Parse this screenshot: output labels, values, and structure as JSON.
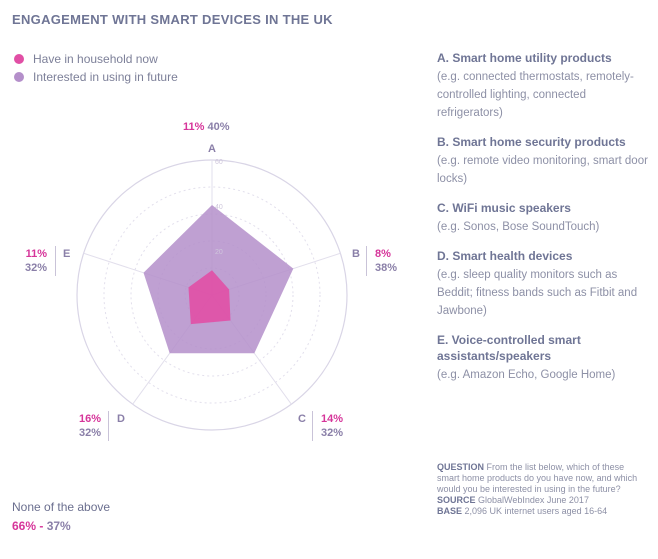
{
  "title": "ENGAGEMENT WITH SMART DEVICES IN THE UK",
  "legend": [
    {
      "label": "Have in household now",
      "color": "#e14fa5"
    },
    {
      "label": "Interested in using in future",
      "color": "#b48fca"
    }
  ],
  "chart_data": {
    "type": "radar",
    "axes": [
      "A",
      "B",
      "C",
      "D",
      "E"
    ],
    "rmax": 60,
    "ticks": [
      "60",
      "40",
      "20"
    ],
    "series": [
      {
        "name": "Have in household now",
        "values": [
          11,
          8,
          14,
          16,
          11
        ],
        "color": "#e14fa5"
      },
      {
        "name": "Interested in using in future",
        "values": [
          40,
          38,
          32,
          32,
          32
        ],
        "color": "#b48fca"
      }
    ]
  },
  "vertex_labels": {
    "A": {
      "pink": "11%",
      "purple": "40%"
    },
    "B": {
      "pink": "8%",
      "purple": "38%"
    },
    "C": {
      "pink": "14%",
      "purple": "32%"
    },
    "D": {
      "pink": "16%",
      "purple": "32%"
    },
    "E": {
      "pink": "11%",
      "purple": "32%"
    }
  },
  "none": {
    "label": "None of the above",
    "pink": "66%",
    "sep": " - ",
    "purple": "37%"
  },
  "descriptions": [
    {
      "heading": "A. Smart home utility products",
      "sub": "(e.g. connected thermostats, remotely-controlled lighting, connected refrigerators)"
    },
    {
      "heading": "B. Smart home security products",
      "sub": "(e.g. remote video monitoring, smart door locks)"
    },
    {
      "heading": "C. WiFi music speakers",
      "sub": "(e.g. Sonos, Bose SoundTouch)"
    },
    {
      "heading": "D. Smart health devices",
      "sub": "(e.g. sleep quality monitors such as Beddit; fitness bands such as Fitbit and Jawbone)"
    },
    {
      "heading": "E. Voice-controlled smart assistants/speakers",
      "sub": "(e.g. Amazon Echo, Google Home)"
    }
  ],
  "notes": {
    "question_label": "QUESTION",
    "question": "From the list below, which of these smart home products do you have now, and which would you be interested in using in the future?",
    "source_label": "SOURCE",
    "source": "GlobalWebIndex June 2017",
    "base_label": "BASE",
    "base": "2,096 UK internet users aged 16-64"
  }
}
